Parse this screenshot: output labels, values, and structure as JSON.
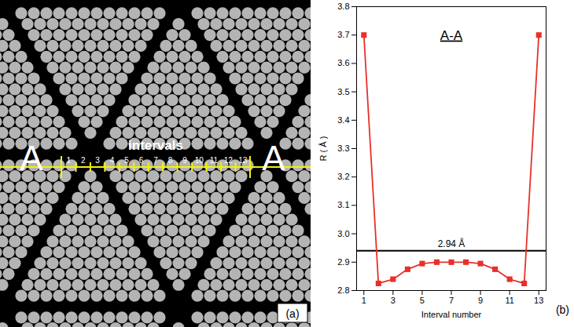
{
  "panel_a": {
    "marker_label": "A",
    "caption": "intervals",
    "intervals": [
      1,
      2,
      3,
      4,
      5,
      6,
      7,
      8,
      9,
      10,
      11,
      12,
      13
    ],
    "panel_label": "(a)"
  },
  "chart_data": {
    "type": "line",
    "title": "A-A",
    "x_label": "Interval number",
    "y_label": "R ( Å )",
    "x": [
      1,
      2,
      3,
      4,
      5,
      6,
      7,
      8,
      9,
      10,
      11,
      12,
      13
    ],
    "series": [
      {
        "name": "R",
        "color": "#e8302a",
        "marker": "square",
        "line_style": "solid",
        "values": [
          3.7,
          2.825,
          2.84,
          2.875,
          2.895,
          2.9,
          2.9,
          2.9,
          2.895,
          2.875,
          2.84,
          2.825,
          3.7
        ]
      }
    ],
    "reference_line": {
      "value": 2.94,
      "label": "2.94 Å"
    },
    "xlim": [
      0.5,
      13.5
    ],
    "xticks": [
      1,
      3,
      5,
      7,
      9,
      11,
      13
    ],
    "ylim": [
      2.8,
      3.8
    ],
    "yticks": [
      2.8,
      2.9,
      {
        "value": 3,
        "label": "3.0"
      },
      3.1,
      3.2,
      3.3,
      3.4,
      3.5,
      3.6,
      3.7,
      3.8
    ],
    "grid": false,
    "panel_label": "(b)"
  }
}
